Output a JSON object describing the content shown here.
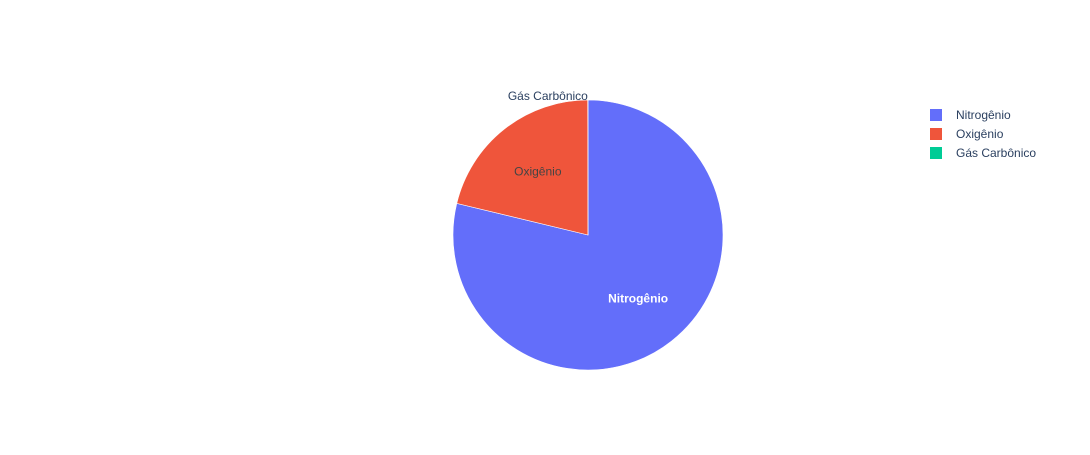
{
  "chart_data": {
    "type": "pie",
    "title": "",
    "categories": [
      "Nitrogênio",
      "Oxigênio",
      "Gás Carbônico"
    ],
    "values": [
      78,
      21,
      0.03
    ],
    "colors": [
      "#636efa",
      "#EF553B",
      "#00cc96"
    ],
    "text_colors": [
      "#ffffff",
      "#444444",
      "#2a3f5f"
    ],
    "legend_position": "top-right"
  }
}
